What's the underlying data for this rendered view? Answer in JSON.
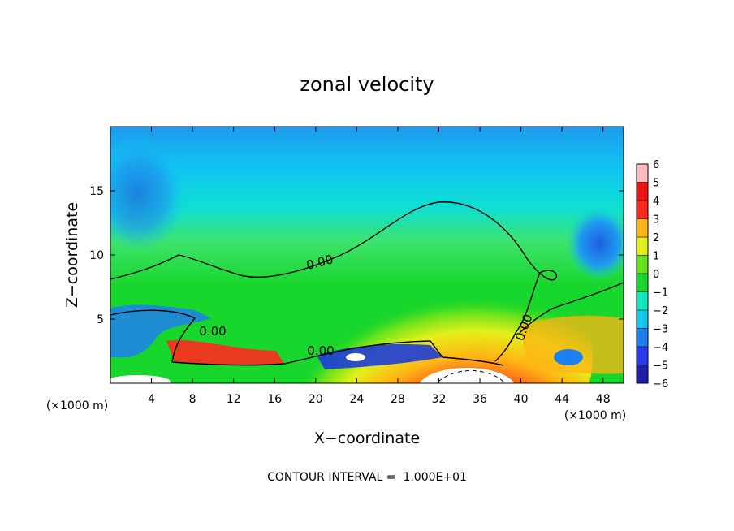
{
  "chart_data": {
    "type": "heatmap",
    "title": "zonal velocity",
    "xlabel": "X−coordinate",
    "ylabel": "Z−coordinate",
    "x_unit_left": "(×1000 m)",
    "x_unit_right": "(×1000 m)",
    "xlim": [
      0,
      50
    ],
    "ylim": [
      0,
      20
    ],
    "x_ticks": [
      4,
      8,
      12,
      16,
      20,
      24,
      28,
      32,
      36,
      40,
      44,
      48
    ],
    "x_tick_labels": [
      "4",
      "8",
      "12",
      "16",
      "20",
      "24",
      "28",
      "32",
      "36",
      "40",
      "44",
      "48"
    ],
    "y_ticks": [
      5,
      10,
      15
    ],
    "y_tick_labels": [
      "5",
      "10",
      "15"
    ],
    "colorbar": {
      "min": -6,
      "max": 6,
      "levels": [
        "6",
        "5",
        "4",
        "3",
        "2",
        "1",
        "0",
        "−1",
        "−2",
        "−3",
        "−4",
        "−5",
        "−6"
      ],
      "colors": {
        "m6": "#7f1fbf",
        "m5": "#1e1ea8",
        "m4": "#2a3cf0",
        "m3": "#1e7ff0",
        "m2": "#10c8f0",
        "m1": "#0fe8c0",
        "z0": "#17d62c",
        "p1": "#66e21c",
        "p2": "#e2f01a",
        "p3": "#ffb414",
        "p4": "#ff2a1e",
        "p5": "#f01414",
        "p6": "#ffbac0"
      }
    },
    "zero_contour_labels": [
      "0.00",
      "0.00",
      "0.00",
      "0.00"
    ],
    "note": "CONTOUR INTERVAL =  1.000E+01"
  }
}
